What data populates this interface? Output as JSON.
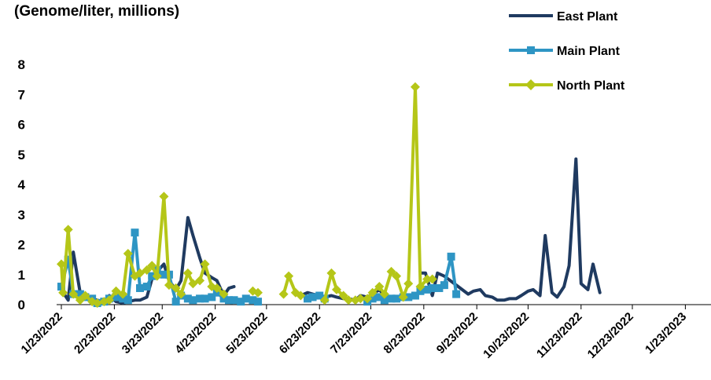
{
  "chart_data": {
    "type": "line",
    "title": "(Genome/liter, millions)",
    "xlabel": "",
    "ylabel": "",
    "ylim": [
      0,
      8
    ],
    "yticks": [
      0,
      1,
      2,
      3,
      4,
      5,
      6,
      7,
      8
    ],
    "xlim": [
      "2022-01-23",
      "2023-02-07"
    ],
    "xtick_labels": [
      "1/23/2022",
      "2/23/2022",
      "3/23/2022",
      "4/23/2022",
      "5/23/2022",
      "6/23/2022",
      "7/23/2022",
      "8/23/2022",
      "9/23/2022",
      "10/23/2022",
      "11/23/2022",
      "12/23/2022",
      "1/23/2023"
    ],
    "grid": false,
    "legend_position": "top-right",
    "series": [
      {
        "name": "East Plant",
        "color": "#1f3a60",
        "marker": "none",
        "points": [
          [
            "2022-01-23",
            0.5
          ],
          [
            "2022-01-27",
            0.15
          ],
          [
            "2022-01-30",
            1.75
          ],
          [
            "2022-02-03",
            0.4
          ],
          [
            "2022-02-06",
            0.3
          ],
          [
            "2022-02-10",
            0.2
          ],
          [
            "2022-02-13",
            0.15
          ],
          [
            "2022-02-17",
            0.1
          ],
          [
            "2022-02-20",
            0.3
          ],
          [
            "2022-02-24",
            0.1
          ],
          [
            "2022-02-28",
            0.05
          ],
          [
            "2022-03-03",
            0.1
          ],
          [
            "2022-03-07",
            0.15
          ],
          [
            "2022-03-10",
            0.15
          ],
          [
            "2022-03-14",
            0.25
          ],
          [
            "2022-03-17",
            0.85
          ],
          [
            "2022-03-20",
            1.1
          ],
          [
            "2022-03-24",
            1.35
          ],
          [
            "2022-03-27",
            0.8
          ],
          [
            "2022-03-31",
            0.5
          ],
          [
            "2022-04-03",
            0.8
          ],
          [
            "2022-04-07",
            2.9
          ],
          [
            "2022-04-10",
            2.3
          ],
          [
            "2022-04-14",
            1.55
          ],
          [
            "2022-04-17",
            1.05
          ],
          [
            "2022-04-21",
            0.9
          ],
          [
            "2022-04-24",
            0.8
          ],
          [
            "2022-04-28",
            0.3
          ],
          [
            "2022-05-01",
            0.55
          ],
          [
            "2022-05-04",
            0.6
          ],
          null,
          [
            "2022-06-12",
            0.3
          ],
          [
            "2022-06-16",
            0.4
          ],
          [
            "2022-06-19",
            0.35
          ],
          [
            "2022-06-23",
            0.3
          ],
          [
            "2022-06-26",
            0.25
          ],
          [
            "2022-06-30",
            0.3
          ],
          [
            "2022-07-03",
            0.25
          ],
          [
            "2022-07-07",
            0.2
          ],
          [
            "2022-07-10",
            0.2
          ],
          [
            "2022-07-14",
            0.15
          ],
          [
            "2022-07-17",
            0.3
          ],
          [
            "2022-07-21",
            0.25
          ],
          [
            "2022-07-24",
            0.35
          ],
          [
            "2022-07-28",
            0.5
          ],
          [
            "2022-07-31",
            0.3
          ],
          [
            "2022-08-04",
            0.2
          ],
          null,
          [
            "2022-08-21",
            1.05
          ],
          [
            "2022-08-24",
            1.05
          ],
          [
            "2022-08-28",
            0.3
          ],
          [
            "2022-08-31",
            1.05
          ],
          [
            "2022-09-04",
            0.95
          ],
          [
            "2022-09-11",
            0.65
          ],
          [
            "2022-09-18",
            0.35
          ],
          [
            "2022-09-21",
            0.45
          ],
          [
            "2022-09-25",
            0.5
          ],
          [
            "2022-09-28",
            0.3
          ],
          [
            "2022-10-02",
            0.25
          ],
          [
            "2022-10-05",
            0.15
          ],
          [
            "2022-10-09",
            0.15
          ],
          [
            "2022-10-12",
            0.2
          ],
          [
            "2022-10-16",
            0.2
          ],
          [
            "2022-10-19",
            0.3
          ],
          [
            "2022-10-23",
            0.45
          ],
          [
            "2022-10-26",
            0.5
          ],
          [
            "2022-10-30",
            0.3
          ],
          [
            "2022-11-02",
            2.3
          ],
          [
            "2022-11-06",
            0.4
          ],
          [
            "2022-11-09",
            0.25
          ],
          [
            "2022-11-13",
            0.6
          ],
          [
            "2022-11-16",
            1.3
          ],
          [
            "2022-11-20",
            4.85
          ],
          [
            "2022-11-23",
            0.7
          ],
          [
            "2022-11-27",
            0.5
          ],
          [
            "2022-11-30",
            1.35
          ],
          [
            "2022-12-04",
            0.4
          ]
        ]
      },
      {
        "name": "Main Plant",
        "color": "#2e95c4",
        "marker": "square",
        "points": [
          [
            "2022-01-23",
            0.6
          ],
          [
            "2022-01-27",
            1.5
          ],
          [
            "2022-01-30",
            0.35
          ],
          [
            "2022-02-03",
            0.35
          ],
          [
            "2022-02-06",
            0.25
          ],
          [
            "2022-02-10",
            0.2
          ],
          [
            "2022-02-13",
            0.05
          ],
          [
            "2022-02-17",
            0.1
          ],
          [
            "2022-02-20",
            0.2
          ],
          [
            "2022-02-24",
            0.25
          ],
          [
            "2022-02-28",
            0.2
          ],
          [
            "2022-03-03",
            0.15
          ],
          [
            "2022-03-07",
            2.4
          ],
          [
            "2022-03-10",
            0.55
          ],
          [
            "2022-03-14",
            0.6
          ],
          [
            "2022-03-17",
            0.95
          ],
          [
            "2022-03-20",
            1.15
          ],
          [
            "2022-03-24",
            1.0
          ],
          [
            "2022-03-27",
            1.0
          ],
          [
            "2022-03-31",
            0.1
          ],
          [
            "2022-04-03",
            0.3
          ],
          [
            "2022-04-07",
            0.2
          ],
          [
            "2022-04-10",
            0.15
          ],
          [
            "2022-04-14",
            0.2
          ],
          [
            "2022-04-17",
            0.2
          ],
          [
            "2022-04-21",
            0.25
          ],
          [
            "2022-04-24",
            0.4
          ],
          [
            "2022-04-28",
            0.2
          ],
          [
            "2022-05-01",
            0.15
          ],
          [
            "2022-05-04",
            0.15
          ],
          [
            "2022-05-08",
            0.1
          ],
          [
            "2022-05-11",
            0.2
          ],
          [
            "2022-05-15",
            0.15
          ],
          [
            "2022-05-18",
            0.1
          ],
          null,
          [
            "2022-06-16",
            0.2
          ],
          [
            "2022-06-19",
            0.25
          ],
          [
            "2022-06-23",
            0.3
          ],
          [
            "2022-06-26",
            0.2
          ],
          null,
          [
            "2022-07-21",
            0.1
          ],
          [
            "2022-07-24",
            0.2
          ],
          [
            "2022-07-28",
            0.25
          ],
          [
            "2022-07-31",
            0.15
          ],
          [
            "2022-08-04",
            0.2
          ],
          [
            "2022-08-07",
            0.2
          ],
          [
            "2022-08-11",
            0.25
          ],
          [
            "2022-08-14",
            0.25
          ],
          [
            "2022-08-18",
            0.3
          ],
          [
            "2022-08-21",
            0.45
          ],
          [
            "2022-08-25",
            0.5
          ],
          [
            "2022-08-28",
            0.55
          ],
          [
            "2022-09-01",
            0.55
          ],
          [
            "2022-09-04",
            0.65
          ],
          [
            "2022-09-08",
            1.6
          ],
          [
            "2022-09-11",
            0.35
          ]
        ]
      },
      {
        "name": "North Plant",
        "color": "#b5c618",
        "marker": "diamond",
        "points": [
          [
            "2022-01-23",
            1.35
          ],
          [
            "2022-01-24",
            0.4
          ],
          [
            "2022-01-27",
            2.5
          ],
          [
            "2022-01-30",
            0.35
          ],
          [
            "2022-02-03",
            0.15
          ],
          [
            "2022-02-06",
            0.3
          ],
          [
            "2022-02-10",
            0.1
          ],
          [
            "2022-02-13",
            0.05
          ],
          [
            "2022-02-17",
            0.1
          ],
          [
            "2022-02-20",
            0.15
          ],
          [
            "2022-02-24",
            0.45
          ],
          [
            "2022-02-28",
            0.35
          ],
          [
            "2022-03-03",
            1.7
          ],
          [
            "2022-03-07",
            0.95
          ],
          [
            "2022-03-10",
            1.05
          ],
          [
            "2022-03-14",
            1.15
          ],
          [
            "2022-03-17",
            1.3
          ],
          [
            "2022-03-20",
            0.95
          ],
          [
            "2022-03-24",
            3.6
          ],
          [
            "2022-03-27",
            0.65
          ],
          [
            "2022-03-31",
            0.55
          ],
          [
            "2022-04-03",
            0.35
          ],
          [
            "2022-04-07",
            1.05
          ],
          [
            "2022-04-10",
            0.7
          ],
          [
            "2022-04-14",
            0.8
          ],
          [
            "2022-04-17",
            1.35
          ],
          [
            "2022-04-21",
            0.6
          ],
          [
            "2022-04-24",
            0.55
          ],
          [
            "2022-04-28",
            0.35
          ],
          null,
          [
            "2022-05-15",
            0.45
          ],
          [
            "2022-05-18",
            0.4
          ],
          null,
          [
            "2022-06-02",
            0.35
          ],
          [
            "2022-06-05",
            0.95
          ],
          [
            "2022-06-09",
            0.4
          ],
          [
            "2022-06-12",
            0.3
          ],
          null,
          [
            "2022-06-26",
            0.15
          ],
          [
            "2022-06-30",
            1.05
          ],
          [
            "2022-07-03",
            0.5
          ],
          [
            "2022-07-07",
            0.3
          ],
          [
            "2022-07-10",
            0.15
          ],
          [
            "2022-07-14",
            0.15
          ],
          [
            "2022-07-17",
            0.2
          ],
          [
            "2022-07-21",
            0.2
          ],
          [
            "2022-07-24",
            0.4
          ],
          [
            "2022-07-28",
            0.6
          ],
          [
            "2022-07-31",
            0.35
          ],
          [
            "2022-08-04",
            1.1
          ],
          [
            "2022-08-07",
            0.95
          ],
          [
            "2022-08-11",
            0.25
          ],
          [
            "2022-08-14",
            0.7
          ],
          [
            "2022-08-18",
            7.25
          ],
          [
            "2022-08-21",
            0.6
          ],
          [
            "2022-08-25",
            0.85
          ],
          [
            "2022-08-28",
            0.85
          ]
        ]
      }
    ]
  }
}
